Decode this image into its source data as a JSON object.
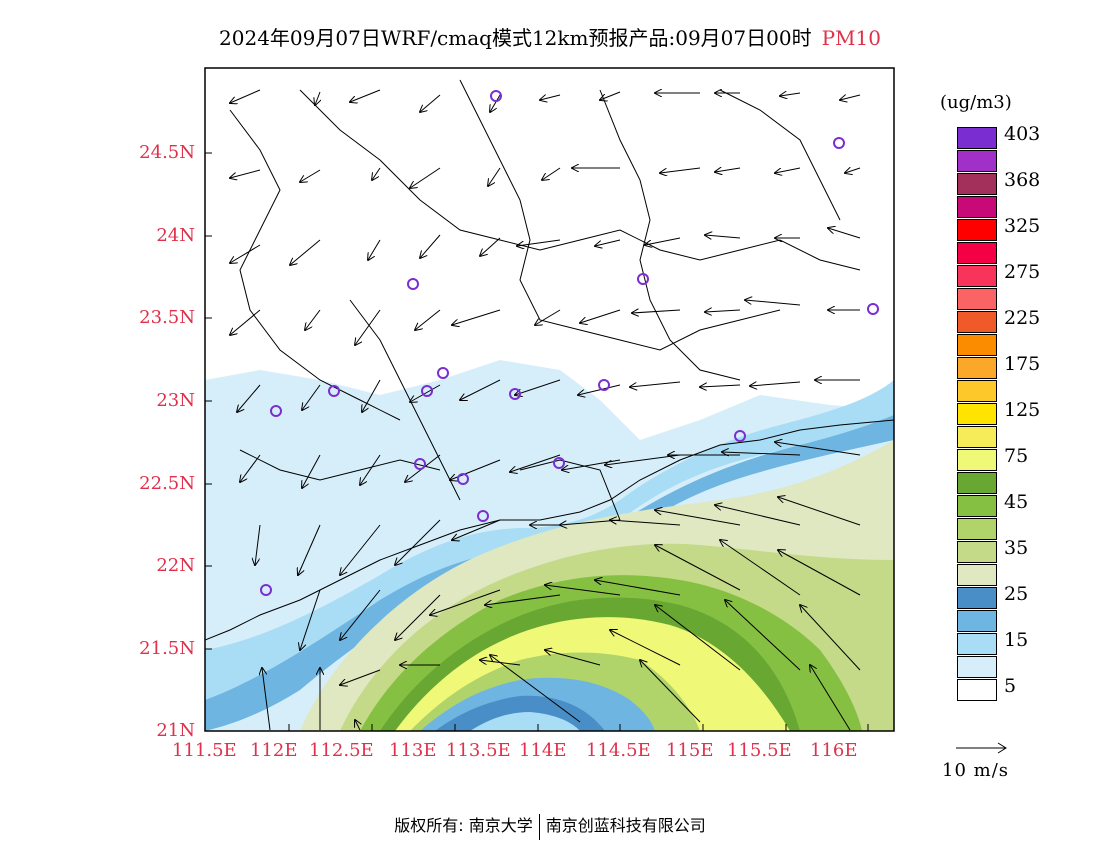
{
  "title": {
    "main": "2024年09月07日WRF/cmaq模式12km预报产品:09月07日00时",
    "variable": "PM10"
  },
  "legend": {
    "unit": "(ug/m3)",
    "colors": [
      "#ffffff",
      "#d6eefa",
      "#a8ddf5",
      "#6fb5e2",
      "#4a8ec8",
      "#dfe8c0",
      "#c4da88",
      "#b0d36a",
      "#86c043",
      "#67a732",
      "#f0f878",
      "#f6ec5a",
      "#ffe400",
      "#fdc82a",
      "#fba82a",
      "#fb8c00",
      "#f05a28",
      "#fa6464",
      "#f8345a",
      "#f40044",
      "#ff0000",
      "#c80a78",
      "#a3305a",
      "#a030c8",
      "#7a2ed2"
    ],
    "labels": [
      "5",
      "15",
      "25",
      "35",
      "45",
      "75",
      "125",
      "175",
      "225",
      "275",
      "325",
      "368",
      "403"
    ]
  },
  "vector_key": {
    "label": "10 m/s"
  },
  "axes": {
    "x_ticks": [
      "111.5E",
      "112E",
      "112.5E",
      "113E",
      "113.5E",
      "114E",
      "114.5E",
      "115E",
      "115.5E",
      "116E"
    ],
    "y_ticks": [
      "24.5N",
      "24N",
      "23.5N",
      "23N",
      "22.5N",
      "22N",
      "21.5N",
      "21N"
    ]
  },
  "copyright": {
    "left": "版权所有: 南京大学",
    "right": "南京创蓝科技有限公司"
  }
}
